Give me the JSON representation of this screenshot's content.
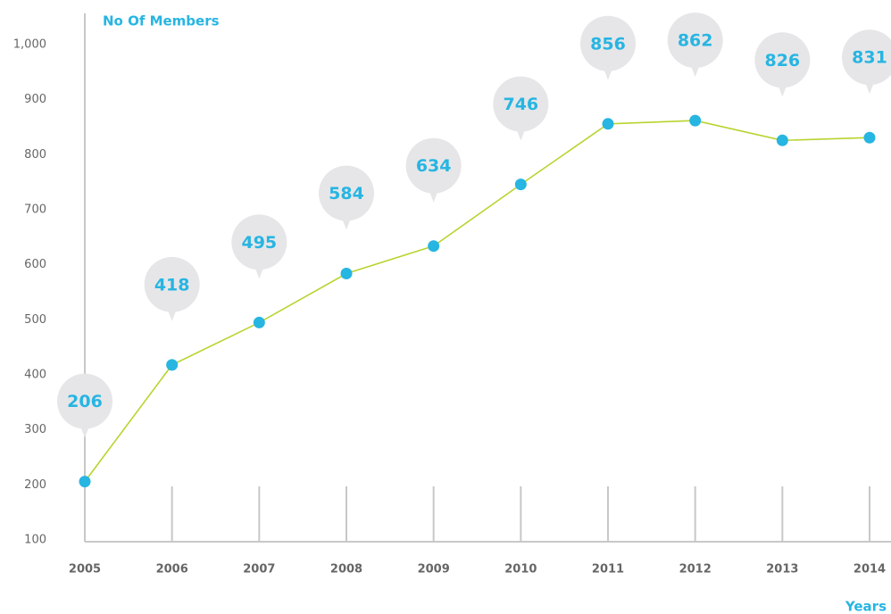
{
  "chart_data": {
    "type": "line",
    "y_label": "No Of Members",
    "x_label": "Years",
    "categories": [
      "2005",
      "2006",
      "2007",
      "2008",
      "2009",
      "2010",
      "2011",
      "2012",
      "2013",
      "2014"
    ],
    "values": [
      206,
      418,
      495,
      584,
      634,
      746,
      856,
      862,
      826,
      831
    ],
    "line_color": "#b8d430",
    "marker_color": "#27b5e2",
    "label_color": "#27b5e2",
    "bubble_color": "#e6e6e8",
    "ylim": [
      100,
      1000
    ],
    "yticks": [
      100,
      200,
      300,
      400,
      500,
      600,
      700,
      800,
      900,
      {
        "value": 1000,
        "label": "1,000"
      }
    ]
  }
}
